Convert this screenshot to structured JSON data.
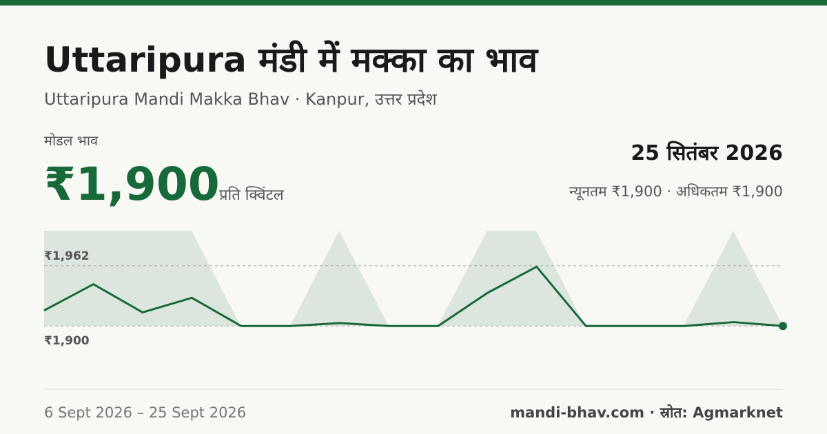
{
  "header": {
    "title": "Uttaripura मंडी में मक्का का भाव",
    "subtitle": "Uttaripura Mandi Makka Bhav · Kanpur, उत्तर प्रदेश"
  },
  "price": {
    "label": "मोडल भाव",
    "value": "₹1,900",
    "unit": "प्रति क्विंटल",
    "date": "25 सितंबर 2026",
    "range": "न्यूनतम ₹1,900 · अधिकतम ₹1,900"
  },
  "chart_data": {
    "type": "line",
    "color": "#17693a",
    "values": [
      1916,
      1943,
      1914,
      1929,
      1900,
      1900,
      1903,
      1900,
      1900,
      1934,
      1961,
      1900,
      1900,
      1900,
      1904,
      1900
    ],
    "ylim": [
      1842,
      1998
    ],
    "yticks": [
      {
        "value": 1900,
        "label": "₹1,900"
      },
      {
        "value": 1962,
        "label": "₹1,962"
      }
    ],
    "grid": true
  },
  "footer": {
    "period": "6 Sept 2026 – 25 Sept 2026",
    "source": "mandi-bhav.com · स्रोत: Agmarknet"
  }
}
